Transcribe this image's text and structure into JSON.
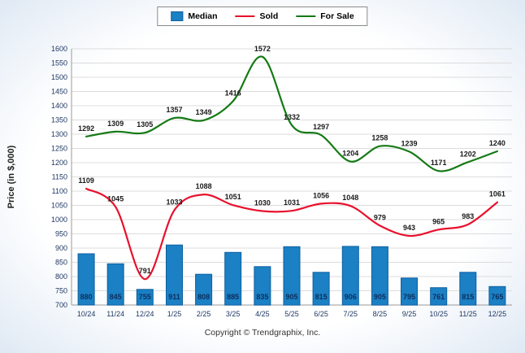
{
  "footer": {
    "copyright": "Copyright © Trendgraphix, Inc."
  },
  "colors": {
    "median_bar": "#1b80c4",
    "median_bar_border": "#0e5fa0",
    "sold_line": "#e8112d",
    "for_sale_line": "#157a15",
    "grid": "#dcdcdc",
    "axis": "#9a9a9a"
  },
  "chart_data": {
    "type": "bar+line combo",
    "title": "",
    "xlabel": "",
    "ylabel": "Price (in $,000)",
    "ylim": [
      700,
      1600
    ],
    "ytick_step": 50,
    "grid": true,
    "legend_position": "top",
    "categories": [
      "10/24",
      "11/24",
      "12/24",
      "1/25",
      "2/25",
      "3/25",
      "4/25",
      "5/25",
      "6/25",
      "7/25",
      "8/25",
      "9/25",
      "10/25",
      "11/25",
      "12/25"
    ],
    "series": [
      {
        "name": "Median",
        "type": "bar",
        "color": "#1b80c4",
        "values": [
          880,
          845,
          755,
          911,
          808,
          885,
          835,
          905,
          815,
          906,
          905,
          795,
          761,
          815,
          765
        ]
      },
      {
        "name": "Sold",
        "type": "line",
        "color": "#e8112d",
        "values": [
          1109,
          1045,
          791,
          1033,
          1088,
          1051,
          1030,
          1031,
          1056,
          1048,
          979,
          943,
          965,
          983,
          1061
        ]
      },
      {
        "name": "For Sale",
        "type": "line",
        "color": "#157a15",
        "values": [
          1292,
          1309,
          1305,
          1357,
          1349,
          1416,
          1572,
          1332,
          1297,
          1204,
          1258,
          1239,
          1171,
          1202,
          1240
        ]
      }
    ]
  }
}
